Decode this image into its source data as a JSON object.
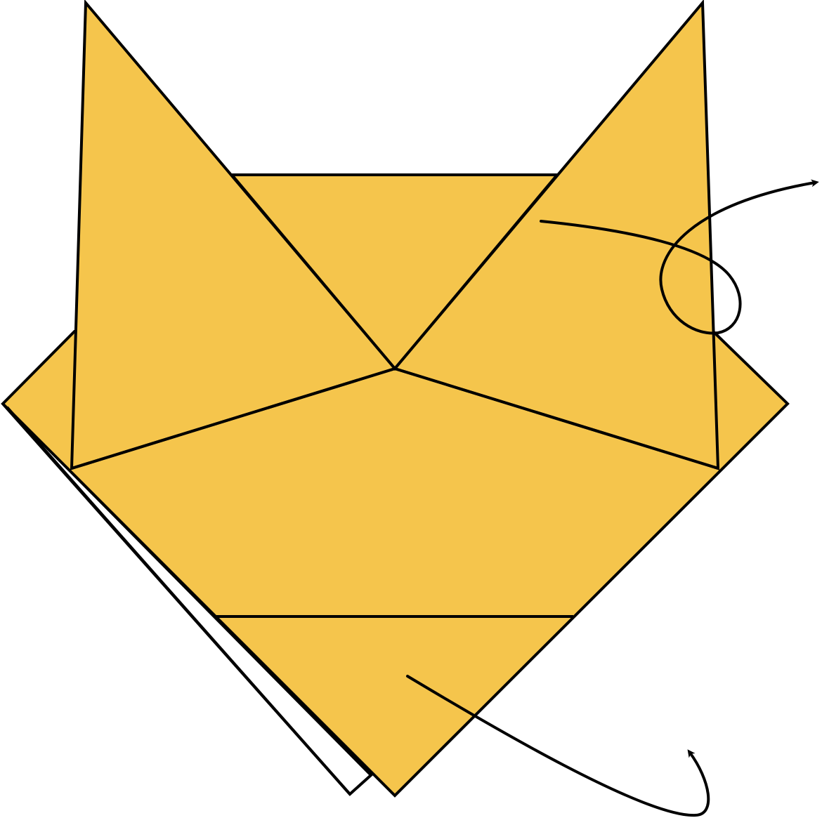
{
  "diagram": {
    "subject": "origami-fox-face",
    "colors": {
      "paper": "#F5C54C",
      "underside": "#FFFFFF",
      "line": "#000000"
    },
    "icons": [
      "fold-behind-arrow",
      "turn-over-arrow"
    ]
  }
}
